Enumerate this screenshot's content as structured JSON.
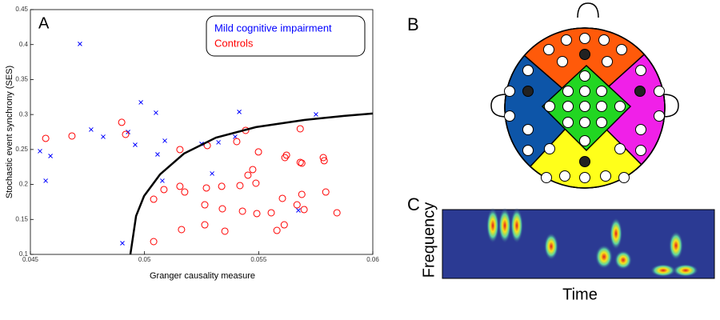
{
  "panels": {
    "a": "A",
    "b": "B",
    "c": "C"
  },
  "spectrogram": {
    "x_label": "Time",
    "y_label": "Frequency"
  },
  "chart_data": {
    "type": "scatter",
    "x_label": "Granger causality measure",
    "y_label": "Stochastic event synchrony (SES)",
    "xlim": [
      0.045,
      0.06
    ],
    "xticks": [
      0.045,
      0.05,
      0.055,
      0.06
    ],
    "ylim": [
      0.1,
      0.45
    ],
    "yticks": [
      0.1,
      0.15,
      0.2,
      0.25,
      0.3,
      0.35,
      0.4,
      0.45
    ],
    "grid": false,
    "legend": "upper right",
    "series": [
      {
        "name": "Mild cognitive impairment",
        "color": "#0000ff",
        "marker": "x",
        "x": [
          0.04717,
          0.04542,
          0.04588,
          0.04567,
          0.04766,
          0.04819,
          0.04928,
          0.04959,
          0.04984,
          0.0505,
          0.05089,
          0.05057,
          0.05078,
          0.04903,
          0.0525,
          0.05296,
          0.05324,
          0.05397,
          0.05415,
          0.05751,
          0.05674
        ],
        "values": [
          0.401,
          0.2476,
          0.2407,
          0.2053,
          0.2785,
          0.2682,
          0.275,
          0.2567,
          0.3174,
          0.3025,
          0.2625,
          0.243,
          0.2053,
          0.116,
          0.258,
          0.2156,
          0.2602,
          0.2682,
          0.3037,
          0.3002,
          0.1629
        ]
      },
      {
        "name": "Controls",
        "color": "#ff0000",
        "marker": "o",
        "x": [
          0.04567,
          0.04682,
          0.049,
          0.04917,
          0.0504,
          0.0504,
          0.05155,
          0.05155,
          0.05176,
          0.05085,
          0.05162,
          0.05275,
          0.05271,
          0.05264,
          0.05264,
          0.05338,
          0.05341,
          0.05352,
          0.05443,
          0.05404,
          0.05418,
          0.05429,
          0.05453,
          0.05474,
          0.05488,
          0.05492,
          0.05499,
          0.05555,
          0.0558,
          0.05604,
          0.05615,
          0.05622,
          0.05682,
          0.05682,
          0.05689,
          0.05689,
          0.05699,
          0.05668,
          0.05612,
          0.05783,
          0.05794,
          0.05787,
          0.05843
        ],
        "values": [
          0.2659,
          0.2693,
          0.2888,
          0.2716,
          0.1789,
          0.1183,
          0.2499,
          0.1973,
          0.1892,
          0.1927,
          0.1355,
          0.2556,
          0.195,
          0.1709,
          0.1423,
          0.1973,
          0.1652,
          0.1332,
          0.2773,
          0.2613,
          0.1984,
          0.1618,
          0.2133,
          0.2213,
          0.2018,
          0.1584,
          0.2465,
          0.1595,
          0.1343,
          0.1801,
          0.2384,
          0.2419,
          0.2796,
          0.2316,
          0.1858,
          0.2304,
          0.1641,
          0.1709,
          0.1423,
          0.2384,
          0.1892,
          0.2339,
          0.1595
        ]
      },
      {
        "color": "#000000",
        "marker": "line",
        "x": [
          0.04938,
          0.04963,
          0.04998,
          0.05068,
          0.05173,
          0.05313,
          0.05488,
          0.05699,
          0.05874,
          0.06
        ],
        "values": [
          0.1,
          0.155,
          0.1835,
          0.2144,
          0.2442,
          0.267,
          0.282,
          0.2922,
          0.298,
          0.3014
        ]
      }
    ]
  }
}
